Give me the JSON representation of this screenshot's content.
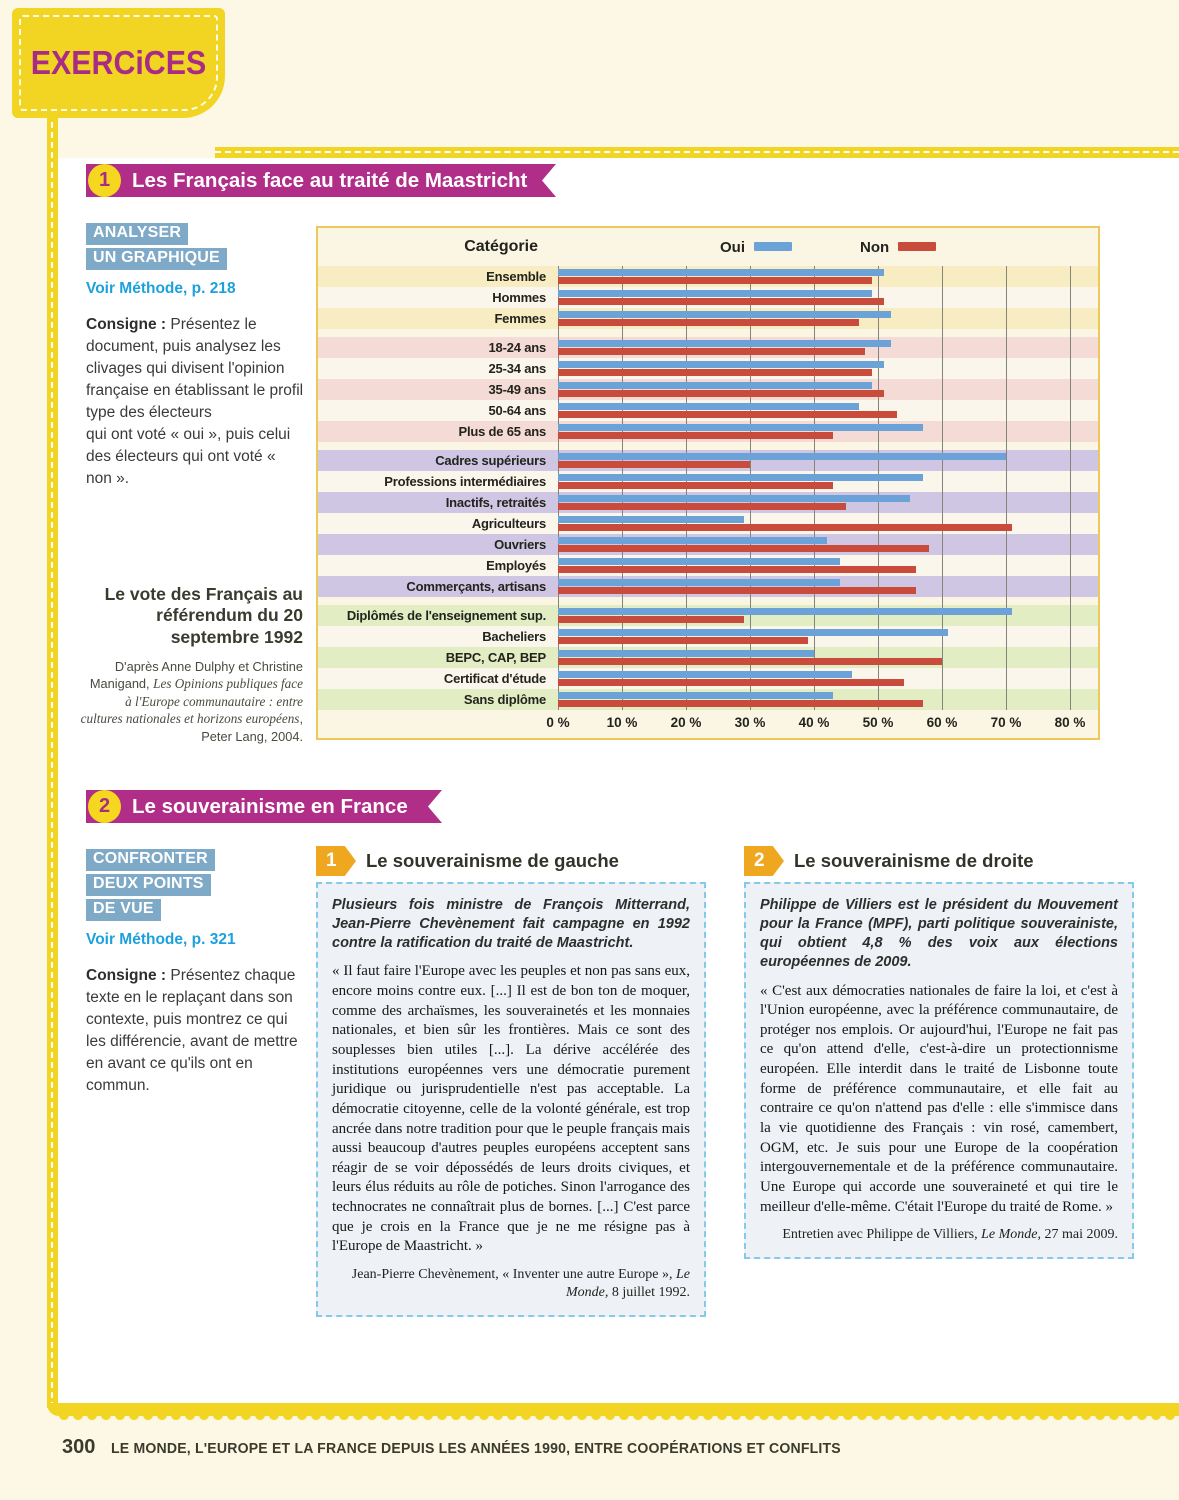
{
  "page": {
    "tab_label": "EXERCiCES",
    "footer_page_number": "300",
    "footer_title": "LE MONDE, L'EUROPE ET LA FRANCE DEPUIS LES ANNÉES 1990, ENTRE COOPÉRATIONS ET CONFLITS"
  },
  "colors": {
    "yellow": "#f2d522",
    "magenta": "#b02d88",
    "oui_blue": "#6ba3d8",
    "non_red": "#c84b3c",
    "skill_tag_blue": "#7ea9c7",
    "method_blue": "#1da1dc",
    "doc_flag_orange": "#efa71f"
  },
  "exercise1": {
    "number": "1",
    "title": "Les Français face au traité de Maastricht",
    "skill_tag_lines": [
      "ANALYSER",
      "UN GRAPHIQUE"
    ],
    "method_ref": "Voir Méthode, p. 218",
    "consigne_label": "Consigne :",
    "consigne_text": " Présentez le document, puis analysez les clivages qui divisent l'opinion française en établissant le profil type des électeurs\nqui ont voté « oui », puis celui des électeurs qui ont voté « non ».",
    "caption_title": "Le vote des Français au référendum du 20 septembre 1992",
    "source_prefix": "D'après Anne Dulphy et Christine Manigand, ",
    "source_italic": "Les Opinions publiques face à l'Europe communautaire : entre cultures nationales et horizons européens",
    "source_suffix": ", Peter Lang, 2004."
  },
  "chart_data": {
    "type": "bar",
    "orientation": "horizontal",
    "title": "Le vote des Français au référendum du 20 septembre 1992",
    "column_header": "Catégorie",
    "unit": "%",
    "xlim": [
      0,
      80
    ],
    "x_ticks": [
      "0 %",
      "10 %",
      "20 %",
      "30 %",
      "40 %",
      "50 %",
      "60 %",
      "70 %",
      "80 %"
    ],
    "grid": true,
    "legend_position": "top",
    "legend": [
      {
        "name": "Oui",
        "color": "#6ba3d8"
      },
      {
        "name": "Non",
        "color": "#c84b3c"
      }
    ],
    "row_alt_bg": "#faf6eb",
    "groups": [
      {
        "name": "ensemble",
        "band_color": "#f8ecc3",
        "rows": [
          {
            "label": "Ensemble",
            "oui": 51,
            "non": 49
          },
          {
            "label": "Hommes",
            "oui": 49,
            "non": 51
          },
          {
            "label": "Femmes",
            "oui": 52,
            "non": 47
          }
        ]
      },
      {
        "name": "age",
        "band_color": "#f5dbd6",
        "rows": [
          {
            "label": "18-24 ans",
            "oui": 52,
            "non": 48
          },
          {
            "label": "25-34 ans",
            "oui": 51,
            "non": 49
          },
          {
            "label": "35-49 ans",
            "oui": 49,
            "non": 51
          },
          {
            "label": "50-64 ans",
            "oui": 47,
            "non": 53
          },
          {
            "label": "Plus de 65 ans",
            "oui": 57,
            "non": 43
          }
        ]
      },
      {
        "name": "profession",
        "band_color": "#cec6e3",
        "rows": [
          {
            "label": "Cadres supérieurs",
            "oui": 70,
            "non": 30
          },
          {
            "label": "Professions intermédiaires",
            "oui": 57,
            "non": 43
          },
          {
            "label": "Inactifs, retraités",
            "oui": 55,
            "non": 45
          },
          {
            "label": "Agriculteurs",
            "oui": 29,
            "non": 71
          },
          {
            "label": "Ouvriers",
            "oui": 42,
            "non": 58
          },
          {
            "label": "Employés",
            "oui": 44,
            "non": 56
          },
          {
            "label": "Commerçants, artisans",
            "oui": 44,
            "non": 56
          }
        ]
      },
      {
        "name": "diplome",
        "band_color": "#e3edc4",
        "rows": [
          {
            "label": "Diplômés de l'enseignement sup.",
            "oui": 71,
            "non": 29
          },
          {
            "label": "Bacheliers",
            "oui": 61,
            "non": 39
          },
          {
            "label": "BEPC, CAP, BEP",
            "oui": 40,
            "non": 60
          },
          {
            "label": "Certificat d'étude",
            "oui": 46,
            "non": 54
          },
          {
            "label": "Sans diplôme",
            "oui": 43,
            "non": 57
          }
        ]
      }
    ]
  },
  "exercise2": {
    "number": "2",
    "title": "Le souverainisme en France",
    "skill_tag_lines": [
      "CONFRONTER",
      "DEUX POINTS",
      "DE VUE"
    ],
    "method_ref": "Voir Méthode, p. 321",
    "consigne_label": "Consigne :",
    "consigne_text": " Présentez chaque texte en le replaçant dans son contexte, puis montrez ce qui les différencie, avant de mettre en avant ce qu'ils ont en commun.",
    "documents": [
      {
        "number": "1",
        "title": "Le souverainisme de gauche",
        "intro": "Plusieurs fois ministre de François Mitterrand, Jean-Pierre Chevènement fait campagne en 1992 contre la ratification du traité de Maastricht.",
        "body": "« Il faut faire l'Europe avec les peuples et non pas sans eux, encore moins contre eux. [...] Il est de bon ton de moquer, comme des archaïsmes, les souverainetés et les monnaies nationales, et bien sûr les frontières. Mais ce sont des souplesses bien utiles [...]. La dérive accélérée des institutions européennes vers une démocratie purement juridique ou jurisprudentielle n'est pas acceptable. La démocratie citoyenne, celle de la volonté générale, est trop ancrée dans notre tradition pour que le peuple français mais aussi beaucoup d'autres peuples européens acceptent sans réagir de se voir dépossédés de leurs droits civiques, et leurs élus réduits au rôle de potiches. Sinon l'arrogance des technocrates ne connaîtrait plus de bornes. [...] C'est parce que je crois en la France que je ne me résigne pas à l'Europe de Maastricht. »",
        "attribution_plain": "Jean-Pierre Chevènement, « Inventer une autre Europe », ",
        "attribution_italic": "Le Monde,",
        "attribution_suffix": " 8 juillet 1992."
      },
      {
        "number": "2",
        "title": "Le souverainisme de droite",
        "intro": "Philippe de Villiers est le président du Mouvement pour la France (MPF), parti politique souverainiste, qui obtient 4,8 % des voix aux élections européennes de 2009.",
        "body": "« C'est aux démocraties nationales de faire la loi, et c'est à l'Union européenne, avec la préférence communautaire, de protéger nos emplois. Or aujourd'hui, l'Europe ne fait pas ce qu'on attend d'elle, c'est-à-dire un protectionnisme européen. Elle interdit dans le traité de Lisbonne toute forme de préférence communautaire, et elle fait au contraire ce qu'on n'attend pas d'elle : elle s'immisce dans la vie quotidienne des Français : vin rosé, camembert, OGM, etc. Je suis pour une Europe de la coopération intergouvernementale et de la préférence communautaire. Une Europe qui accorde une souveraineté et qui tire le meilleur d'elle-même. C'était l'Europe du traité de Rome. »",
        "attribution_plain": "Entretien avec Philippe de Villiers, ",
        "attribution_italic": "Le Monde,",
        "attribution_suffix": " 27 mai 2009."
      }
    ]
  }
}
